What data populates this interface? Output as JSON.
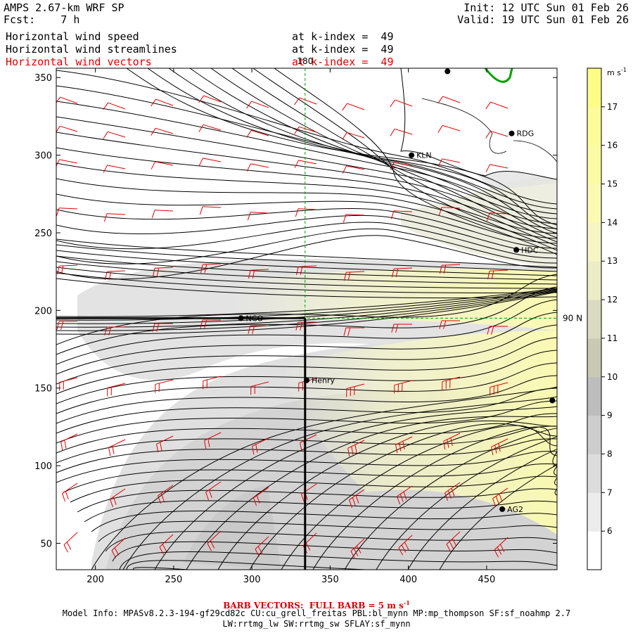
{
  "header": {
    "model_title": "AMPS 2.67-km WRF SP",
    "forecast": "Fcst:    7 h",
    "init": "Init: 12 UTC Sun 01 Feb 26",
    "valid": "Valid: 19 UTC Sun 01 Feb 26",
    "fields": [
      {
        "name": "Horizontal wind speed",
        "level": "at k-index =  49"
      },
      {
        "name": "Horizontal wind streamlines",
        "level": "at k-index =  49"
      },
      {
        "name": "Horizontal wind vectors",
        "level": "at k-index =  49"
      }
    ]
  },
  "map": {
    "x_ticks": [
      "200",
      "250",
      "300",
      "350",
      "400",
      "450"
    ],
    "y_ticks": [
      "350",
      "300",
      "250",
      "200",
      "150",
      "100",
      "50"
    ],
    "x_range": [
      175,
      495
    ],
    "y_range": [
      33,
      356
    ],
    "meridian_label": "180",
    "parallel_label": "90 N",
    "meridian_x": 334,
    "parallel_y": 195,
    "cross_section_x": 334,
    "stations": [
      {
        "name": "NCO",
        "x": 293,
        "y": 195
      },
      {
        "name": "Henry",
        "x": 335,
        "y": 155
      },
      {
        "name": "KLN",
        "x": 402,
        "y": 300
      },
      {
        "name": "RDG",
        "x": 466,
        "y": 314
      },
      {
        "name": "HDC",
        "x": 469,
        "y": 239
      },
      {
        "name": "AG2",
        "x": 460,
        "y": 72
      },
      {
        "name": "",
        "x": 425,
        "y": 354
      },
      {
        "name": "",
        "x": 492,
        "y": 142
      }
    ]
  },
  "colorbar": {
    "unit_label": "m s",
    "unit_exp": "-1",
    "ticks": [
      "17",
      "16",
      "15",
      "14",
      "13",
      "12",
      "11",
      "10",
      "9",
      "8",
      "7",
      "6"
    ],
    "colors": [
      "#ffffff",
      "#ececec",
      "#dcdcdc",
      "#cdcdcd",
      "#bdbdbd",
      "#c9c9b4",
      "#dadac0",
      "#ececc6",
      "#f6f6c4",
      "#fafab2",
      "#fbfba4",
      "#fcfc98",
      "#fdfd86"
    ]
  },
  "footer": {
    "barb_note": "BARB VECTORS:  FULL BARB = 5 m s",
    "barb_exp": "-1",
    "model_info": "Model Info: MPASv8.2.3-194-gf29cd82c CU:cu_grell_freitas PBL:bl_mynn MP:mp_thompson SF:sf_noahmp 2.7",
    "model_info_2": "LW:rrtmg_lw SW:rrtmg_sw SFLAY:sf_mynn"
  }
}
